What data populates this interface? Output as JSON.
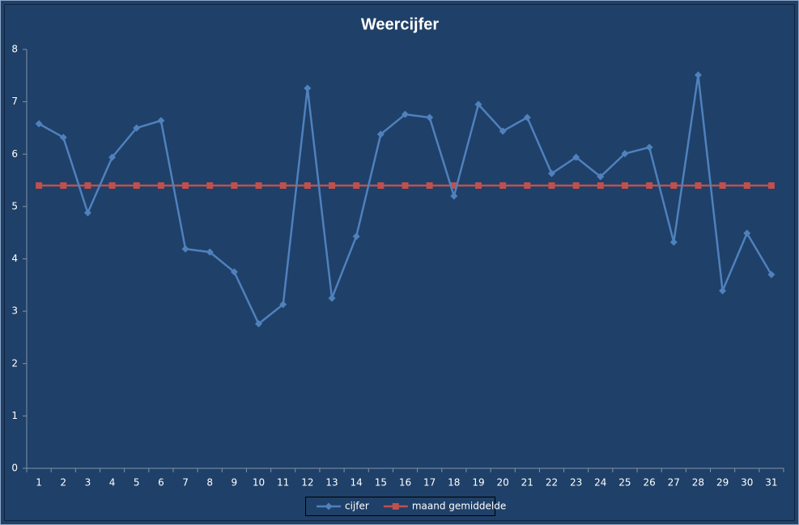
{
  "chart_data": {
    "type": "line",
    "title": "Weercijfer",
    "categories": [
      "1",
      "2",
      "3",
      "4",
      "5",
      "6",
      "7",
      "8",
      "9",
      "10",
      "11",
      "12",
      "13",
      "14",
      "15",
      "16",
      "17",
      "18",
      "19",
      "20",
      "21",
      "22",
      "23",
      "24",
      "25",
      "26",
      "27",
      "28",
      "29",
      "30",
      "31"
    ],
    "series": [
      {
        "name": "cijfer",
        "color": "#4f81bd",
        "marker": "diamond",
        "values": [
          6.58,
          6.32,
          4.88,
          5.94,
          6.5,
          6.64,
          4.19,
          4.13,
          3.75,
          2.76,
          3.13,
          7.26,
          3.25,
          4.43,
          6.38,
          6.76,
          6.7,
          5.2,
          6.95,
          6.44,
          6.7,
          5.63,
          5.94,
          5.57,
          6.01,
          6.13,
          4.32,
          7.51,
          3.39,
          4.49,
          3.7
        ]
      },
      {
        "name": "maand gemiddelde",
        "color": "#c0504d",
        "marker": "square",
        "values": [
          5.4,
          5.4,
          5.4,
          5.4,
          5.4,
          5.4,
          5.4,
          5.4,
          5.4,
          5.4,
          5.4,
          5.4,
          5.4,
          5.4,
          5.4,
          5.4,
          5.4,
          5.4,
          5.4,
          5.4,
          5.4,
          5.4,
          5.4,
          5.4,
          5.4,
          5.4,
          5.4,
          5.4,
          5.4,
          5.4,
          5.4
        ]
      }
    ],
    "ylim": [
      0,
      8
    ],
    "yticks": [
      0,
      1,
      2,
      3,
      4,
      5,
      6,
      7,
      8
    ],
    "grid": false,
    "legend": "bottom"
  }
}
